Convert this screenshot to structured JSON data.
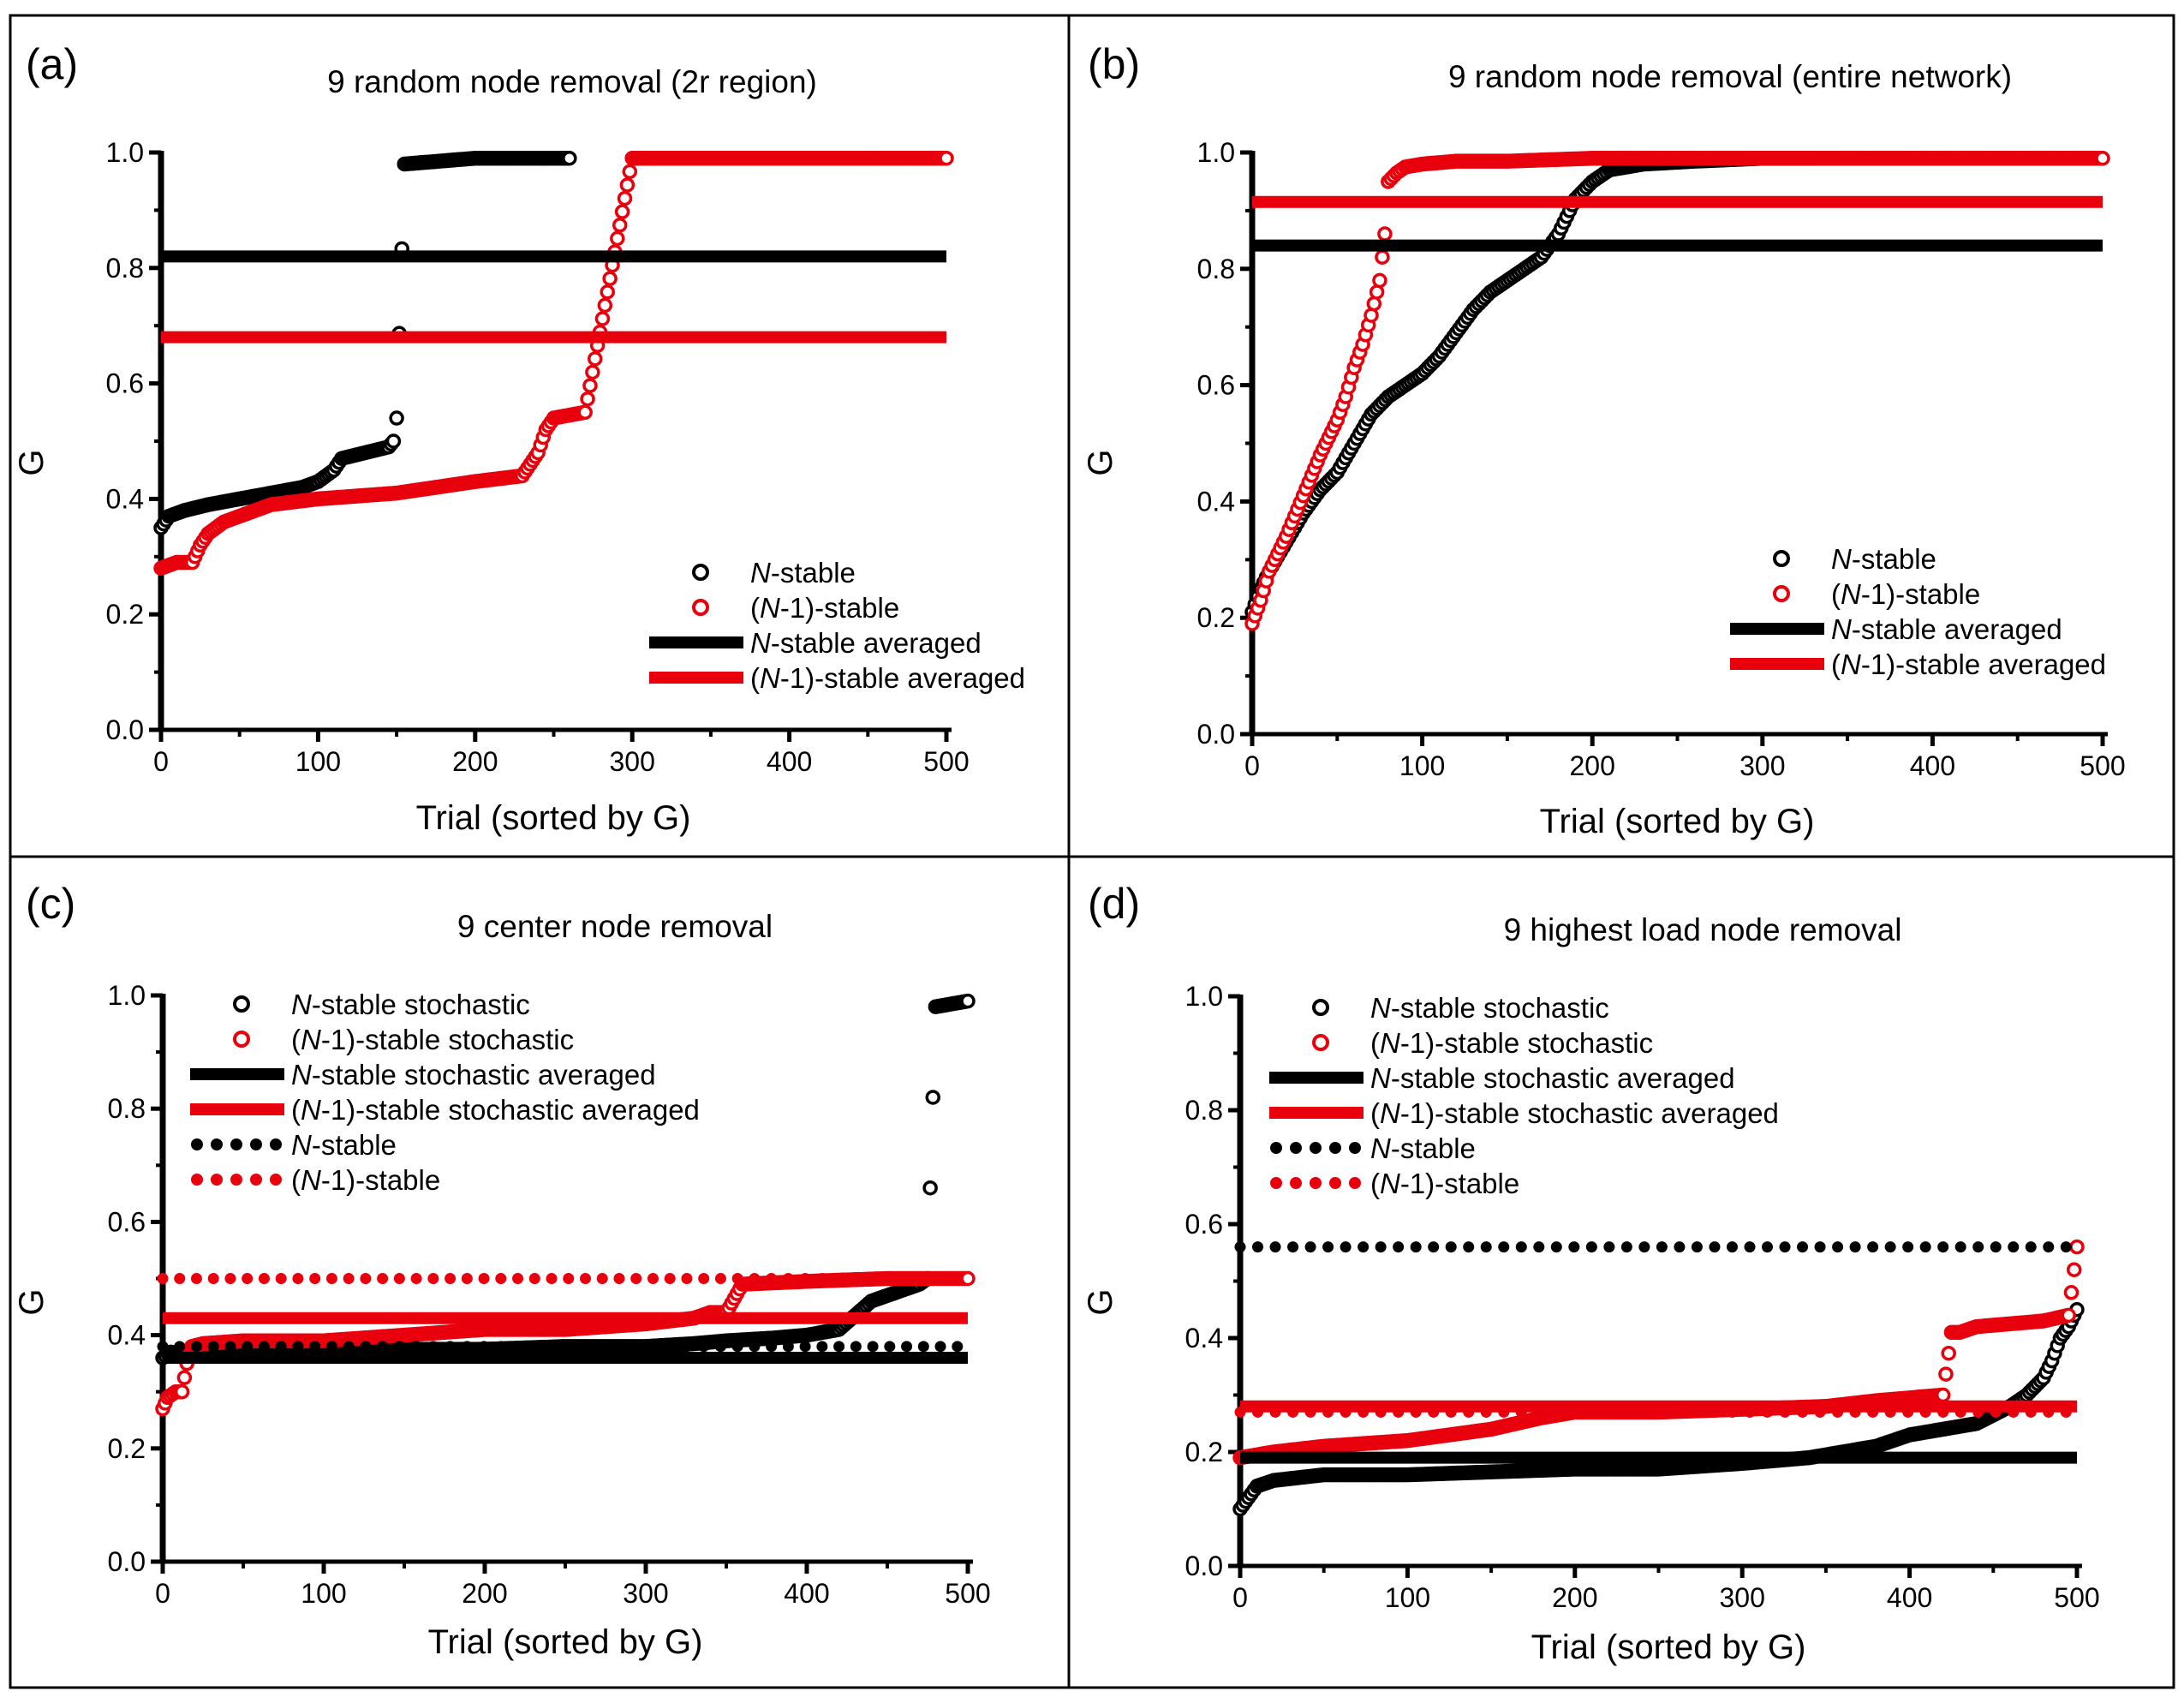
{
  "colors": {
    "black": "#000000",
    "red": "#e8000d"
  },
  "panels": [
    {
      "label": "(a)",
      "title": "9 random node removal (2r region)",
      "legend": [
        {
          "kind": "circle",
          "color": "#000000",
          "text_italic": "N",
          "text_rest": "-stable"
        },
        {
          "kind": "circle",
          "color": "#e8000d",
          "text_pre": "(",
          "text_italic": "N",
          "text_rest": "-1)-stable"
        },
        {
          "kind": "solid",
          "color": "#000000",
          "text_italic": "N",
          "text_rest": "-stable averaged"
        },
        {
          "kind": "solid",
          "color": "#e8000d",
          "text_pre": "(",
          "text_italic": "N",
          "text_rest": "-1)-stable averaged"
        }
      ]
    },
    {
      "label": "(b)",
      "title": "9 random node removal (entire network)",
      "legend": [
        {
          "kind": "circle",
          "color": "#000000",
          "text_italic": "N",
          "text_rest": "-stable"
        },
        {
          "kind": "circle",
          "color": "#e8000d",
          "text_pre": "(",
          "text_italic": "N",
          "text_rest": "-1)-stable"
        },
        {
          "kind": "solid",
          "color": "#000000",
          "text_italic": "N",
          "text_rest": "-stable averaged"
        },
        {
          "kind": "solid",
          "color": "#e8000d",
          "text_pre": "(",
          "text_italic": "N",
          "text_rest": "-1)-stable averaged"
        }
      ]
    },
    {
      "label": "(c)",
      "title": "9 center node removal",
      "legend": [
        {
          "kind": "circle",
          "color": "#000000",
          "text_italic": "N",
          "text_rest": "-stable stochastic"
        },
        {
          "kind": "circle",
          "color": "#e8000d",
          "text_pre": "(",
          "text_italic": "N",
          "text_rest": "-1)-stable stochastic"
        },
        {
          "kind": "solid",
          "color": "#000000",
          "text_italic": "N",
          "text_rest": "-stable stochastic averaged"
        },
        {
          "kind": "solid",
          "color": "#e8000d",
          "text_pre": "(",
          "text_italic": "N",
          "text_rest": "-1)-stable stochastic averaged"
        },
        {
          "kind": "dotted",
          "color": "#000000",
          "text_italic": "N",
          "text_rest": "-stable"
        },
        {
          "kind": "dotted",
          "color": "#e8000d",
          "text_pre": "(",
          "text_italic": "N",
          "text_rest": "-1)-stable"
        }
      ]
    },
    {
      "label": "(d)",
      "title": "9 highest load node removal",
      "legend": [
        {
          "kind": "circle",
          "color": "#000000",
          "text_italic": "N",
          "text_rest": "-stable stochastic"
        },
        {
          "kind": "circle",
          "color": "#e8000d",
          "text_pre": "(",
          "text_italic": "N",
          "text_rest": "-1)-stable stochastic"
        },
        {
          "kind": "solid",
          "color": "#000000",
          "text_italic": "N",
          "text_rest": "-stable stochastic averaged"
        },
        {
          "kind": "solid",
          "color": "#e8000d",
          "text_pre": "(",
          "text_italic": "N",
          "text_rest": "-1)-stable stochastic averaged"
        },
        {
          "kind": "dotted",
          "color": "#000000",
          "text_italic": "N",
          "text_rest": "-stable"
        },
        {
          "kind": "dotted",
          "color": "#e8000d",
          "text_pre": "(",
          "text_italic": "N",
          "text_rest": "-1)-stable"
        }
      ]
    }
  ],
  "chart_data": [
    {
      "type": "scatter",
      "title": "9 random node removal (2r region)",
      "xlabel": "Trial (sorted by G)",
      "ylabel": "G",
      "xlim": [
        0,
        500
      ],
      "ylim": [
        0,
        1.0
      ],
      "xticks": [
        0,
        100,
        200,
        300,
        400,
        500
      ],
      "yticks": [
        0.0,
        0.2,
        0.4,
        0.6,
        0.8,
        1.0
      ],
      "legend_position": "bottom-right",
      "series": [
        {
          "name": "N-stable",
          "style": "circles",
          "color": "#000000",
          "x": [
            0,
            5,
            15,
            30,
            50,
            70,
            90,
            100,
            110,
            115,
            130,
            145,
            148,
            150,
            155,
            200,
            260
          ],
          "y": [
            0.35,
            0.37,
            0.38,
            0.39,
            0.4,
            0.41,
            0.42,
            0.43,
            0.45,
            0.47,
            0.48,
            0.49,
            0.5,
            0.54,
            0.98,
            0.99,
            0.99
          ]
        },
        {
          "name": "(N-1)-stable",
          "style": "circles",
          "color": "#e8000d",
          "x": [
            0,
            10,
            20,
            25,
            30,
            40,
            50,
            70,
            100,
            150,
            200,
            230,
            235,
            240,
            245,
            250,
            260,
            270,
            300,
            400,
            500
          ],
          "y": [
            0.28,
            0.29,
            0.29,
            0.32,
            0.34,
            0.36,
            0.37,
            0.39,
            0.4,
            0.41,
            0.43,
            0.44,
            0.46,
            0.48,
            0.52,
            0.54,
            0.545,
            0.55,
            0.99,
            0.99,
            0.99
          ]
        },
        {
          "name": "N-stable averaged",
          "style": "solid",
          "color": "#000000",
          "x": [
            0,
            500
          ],
          "y": [
            0.82,
            0.82
          ]
        },
        {
          "name": "(N-1)-stable averaged",
          "style": "solid",
          "color": "#e8000d",
          "x": [
            0,
            500
          ],
          "y": [
            0.68,
            0.68
          ]
        }
      ]
    },
    {
      "type": "scatter",
      "title": "9 random node removal (entire network)",
      "xlabel": "Trial (sorted by G)",
      "ylabel": "G",
      "xlim": [
        0,
        500
      ],
      "ylim": [
        0,
        1.0
      ],
      "xticks": [
        0,
        100,
        200,
        300,
        400,
        500
      ],
      "yticks": [
        0.0,
        0.2,
        0.4,
        0.6,
        0.8,
        1.0
      ],
      "legend_position": "bottom-right",
      "series": [
        {
          "name": "N-stable",
          "style": "circles",
          "color": "#000000",
          "x": [
            0,
            5,
            10,
            20,
            30,
            40,
            50,
            60,
            70,
            80,
            90,
            100,
            110,
            120,
            130,
            140,
            150,
            160,
            170,
            175,
            180,
            185,
            190,
            200,
            210,
            230,
            260,
            300,
            330
          ],
          "y": [
            0.21,
            0.25,
            0.28,
            0.33,
            0.38,
            0.42,
            0.45,
            0.5,
            0.55,
            0.58,
            0.6,
            0.62,
            0.65,
            0.69,
            0.73,
            0.76,
            0.78,
            0.8,
            0.82,
            0.84,
            0.86,
            0.89,
            0.92,
            0.95,
            0.97,
            0.98,
            0.985,
            0.99,
            0.99
          ]
        },
        {
          "name": "(N-1)-stable",
          "style": "circles",
          "color": "#e8000d",
          "x": [
            0,
            5,
            10,
            20,
            30,
            40,
            50,
            55,
            60,
            65,
            70,
            75,
            78,
            80,
            85,
            90,
            100,
            120,
            150,
            200,
            300,
            400,
            500
          ],
          "y": [
            0.19,
            0.23,
            0.28,
            0.34,
            0.41,
            0.48,
            0.54,
            0.58,
            0.63,
            0.67,
            0.72,
            0.78,
            0.86,
            0.95,
            0.965,
            0.975,
            0.98,
            0.985,
            0.985,
            0.99,
            0.99,
            0.99,
            0.99
          ]
        },
        {
          "name": "N-stable averaged",
          "style": "solid",
          "color": "#000000",
          "x": [
            0,
            500
          ],
          "y": [
            0.84,
            0.84
          ]
        },
        {
          "name": "(N-1)-stable averaged",
          "style": "solid",
          "color": "#e8000d",
          "x": [
            0,
            500
          ],
          "y": [
            0.915,
            0.915
          ]
        }
      ]
    },
    {
      "type": "scatter",
      "title": "9 center node removal",
      "xlabel": "Trial (sorted by G)",
      "ylabel": "G",
      "xlim": [
        0,
        500
      ],
      "ylim": [
        0,
        1.0
      ],
      "xticks": [
        0,
        100,
        200,
        300,
        400,
        500
      ],
      "yticks": [
        0.0,
        0.2,
        0.4,
        0.6,
        0.8,
        1.0
      ],
      "legend_position": "top-left",
      "series": [
        {
          "name": "N-stable stochastic",
          "style": "circles",
          "color": "#000000",
          "x": [
            0,
            5,
            15,
            30,
            60,
            100,
            150,
            200,
            250,
            300,
            330,
            350,
            380,
            400,
            420,
            440,
            450,
            460,
            470,
            475,
            480,
            490,
            500
          ],
          "y": [
            0.36,
            0.37,
            0.365,
            0.365,
            0.37,
            0.37,
            0.375,
            0.375,
            0.38,
            0.38,
            0.385,
            0.39,
            0.395,
            0.4,
            0.41,
            0.46,
            0.47,
            0.48,
            0.49,
            0.5,
            0.98,
            0.985,
            0.99
          ]
        },
        {
          "name": "(N-1)-stable stochastic",
          "style": "circles",
          "color": "#e8000d",
          "x": [
            0,
            3,
            8,
            12,
            15,
            18,
            25,
            50,
            100,
            150,
            200,
            250,
            300,
            330,
            340,
            350,
            360,
            400,
            450,
            500
          ],
          "y": [
            0.27,
            0.29,
            0.3,
            0.3,
            0.35,
            0.38,
            0.385,
            0.39,
            0.39,
            0.4,
            0.41,
            0.41,
            0.42,
            0.43,
            0.44,
            0.44,
            0.49,
            0.495,
            0.5,
            0.5
          ]
        },
        {
          "name": "N-stable stochastic averaged",
          "style": "solid",
          "color": "#000000",
          "x": [
            0,
            500
          ],
          "y": [
            0.36,
            0.36
          ]
        },
        {
          "name": "(N-1)-stable stochastic averaged",
          "style": "solid",
          "color": "#e8000d",
          "x": [
            0,
            500
          ],
          "y": [
            0.43,
            0.43
          ]
        },
        {
          "name": "N-stable",
          "style": "dotted",
          "color": "#000000",
          "x": [
            0,
            500
          ],
          "y": [
            0.38,
            0.38
          ]
        },
        {
          "name": "(N-1)-stable",
          "style": "dotted",
          "color": "#e8000d",
          "x": [
            0,
            500
          ],
          "y": [
            0.5,
            0.5
          ]
        }
      ]
    },
    {
      "type": "scatter",
      "title": "9 highest load node removal",
      "xlabel": "Trial (sorted by G)",
      "ylabel": "G",
      "xlim": [
        0,
        500
      ],
      "ylim": [
        0,
        1.0
      ],
      "xticks": [
        0,
        100,
        200,
        300,
        400,
        500
      ],
      "yticks": [
        0.0,
        0.2,
        0.4,
        0.6,
        0.8,
        1.0
      ],
      "legend_position": "top-left",
      "series": [
        {
          "name": "N-stable stochastic",
          "style": "circles",
          "color": "#000000",
          "x": [
            0,
            5,
            10,
            20,
            50,
            100,
            150,
            200,
            250,
            300,
            340,
            360,
            380,
            400,
            420,
            440,
            460,
            470,
            480,
            485,
            490,
            495,
            500
          ],
          "y": [
            0.1,
            0.12,
            0.14,
            0.15,
            0.16,
            0.16,
            0.165,
            0.17,
            0.17,
            0.18,
            0.19,
            0.2,
            0.21,
            0.23,
            0.24,
            0.25,
            0.28,
            0.3,
            0.33,
            0.36,
            0.4,
            0.42,
            0.45
          ]
        },
        {
          "name": "(N-1)-stable stochastic",
          "style": "circles",
          "color": "#e8000d",
          "x": [
            0,
            20,
            50,
            100,
            150,
            180,
            200,
            250,
            300,
            350,
            380,
            400,
            420,
            425,
            430,
            440,
            460,
            480,
            495,
            500
          ],
          "y": [
            0.19,
            0.2,
            0.21,
            0.22,
            0.24,
            0.26,
            0.27,
            0.27,
            0.275,
            0.28,
            0.29,
            0.295,
            0.3,
            0.41,
            0.41,
            0.42,
            0.425,
            0.43,
            0.44,
            0.56
          ]
        },
        {
          "name": "N-stable stochastic averaged",
          "style": "solid",
          "color": "#000000",
          "x": [
            0,
            500
          ],
          "y": [
            0.19,
            0.19
          ]
        },
        {
          "name": "(N-1)-stable stochastic averaged",
          "style": "solid",
          "color": "#e8000d",
          "x": [
            0,
            500
          ],
          "y": [
            0.28,
            0.28
          ]
        },
        {
          "name": "N-stable",
          "style": "dotted",
          "color": "#000000",
          "x": [
            0,
            500
          ],
          "y": [
            0.56,
            0.56
          ]
        },
        {
          "name": "(N-1)-stable",
          "style": "dotted",
          "color": "#e8000d",
          "x": [
            0,
            500
          ],
          "y": [
            0.27,
            0.27
          ]
        }
      ]
    }
  ]
}
